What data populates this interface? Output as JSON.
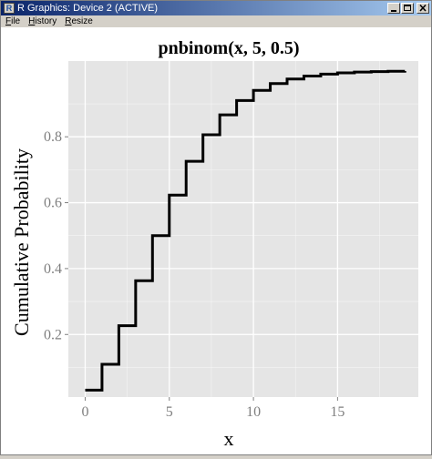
{
  "window": {
    "title": "R Graphics: Device 2 (ACTIVE)",
    "icon": "r-app-icon",
    "buttons": [
      "minimize-icon",
      "maximize-icon",
      "close-icon"
    ]
  },
  "menu": {
    "items": [
      {
        "label": "File",
        "accel": "F"
      },
      {
        "label": "History",
        "accel": "H"
      },
      {
        "label": "Resize",
        "accel": "R"
      }
    ]
  },
  "colors": {
    "panel_bg": "#e5e5e5",
    "grid_major": "#ffffff",
    "line": "#000000",
    "tick_text": "#7f7f7f"
  },
  "chart_data": {
    "type": "line",
    "step": true,
    "title": "pnbinom(x, 5, 0.5)",
    "xlabel": "x",
    "ylabel": "Cumulative Probability",
    "xlim": [
      -1,
      19.8
    ],
    "ylim": [
      0.01,
      1.03
    ],
    "xticks": [
      0,
      5,
      10,
      15
    ],
    "xtick_labels": [
      "0",
      "5",
      "10",
      "15"
    ],
    "yticks": [
      0.2,
      0.4,
      0.6,
      0.8
    ],
    "ytick_labels": [
      "0.2",
      "0.4",
      "0.6",
      "0.8"
    ],
    "grid": true,
    "x": [
      0,
      1,
      2,
      3,
      4,
      5,
      6,
      7,
      8,
      9,
      10,
      11,
      12,
      13,
      14,
      15,
      16,
      17,
      18,
      19
    ],
    "y": [
      0.03125,
      0.109375,
      0.2265625,
      0.3632813,
      0.5,
      0.6230469,
      0.7255859,
      0.8061523,
      0.8665771,
      0.9102173,
      0.9407654,
      0.9615479,
      0.975399,
      0.984478,
      0.9903488,
      0.9940987,
      0.9964704,
      0.9979559,
      0.9988786,
      0.9994476
    ]
  }
}
